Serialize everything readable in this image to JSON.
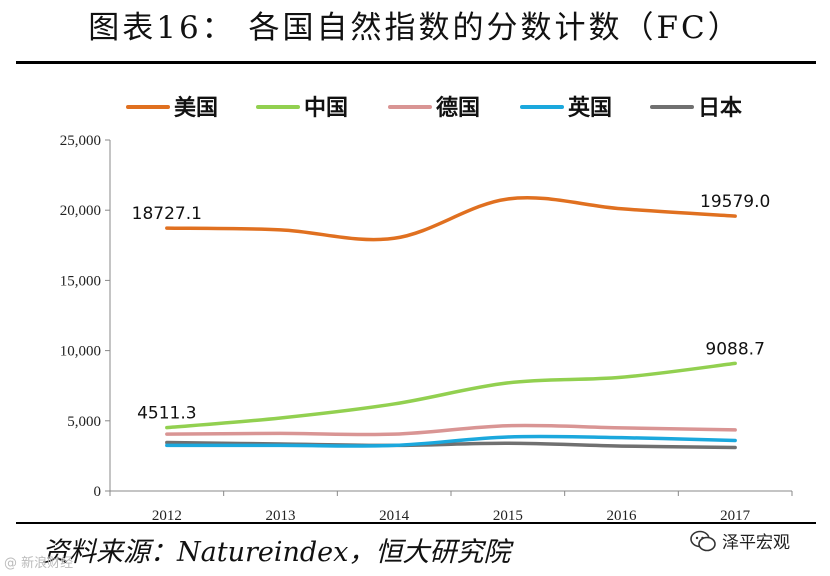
{
  "title": "图表16： 各国自然指数的分数计数（FC）",
  "source_text": "资料来源：Natureindex，恒大研究院",
  "logo_text": "泽平宏观",
  "watermark_text": "@ 新浪财经",
  "chart_data": {
    "type": "line",
    "categories": [
      "2012",
      "2013",
      "2014",
      "2015",
      "2016",
      "2017"
    ],
    "ylim": [
      0,
      25000
    ],
    "yticks": [
      0,
      5000,
      10000,
      15000,
      20000,
      25000
    ],
    "ytick_labels": [
      "0",
      "5,000",
      "10,000",
      "15,000",
      "20,000",
      "25,000"
    ],
    "legend_position": "top",
    "series": [
      {
        "name": "美国",
        "color": "#E07020",
        "values": [
          18727.1,
          18600,
          18000,
          20800,
          20100,
          19579.0
        ]
      },
      {
        "name": "中国",
        "color": "#92D050",
        "values": [
          4511.3,
          5200,
          6200,
          7700,
          8100,
          9088.7
        ]
      },
      {
        "name": "德国",
        "color": "#D99594",
        "values": [
          4050,
          4100,
          4050,
          4650,
          4500,
          4350
        ]
      },
      {
        "name": "英国",
        "color": "#1BA8DD",
        "values": [
          3250,
          3250,
          3250,
          3850,
          3800,
          3600
        ]
      },
      {
        "name": "日本",
        "color": "#707070",
        "values": [
          3450,
          3350,
          3250,
          3400,
          3200,
          3100
        ]
      }
    ],
    "data_labels": [
      {
        "series": 0,
        "index": 0,
        "text": "18727.1"
      },
      {
        "series": 0,
        "index": 5,
        "text": "19579.0"
      },
      {
        "series": 1,
        "index": 0,
        "text": "4511.3"
      },
      {
        "series": 1,
        "index": 5,
        "text": "9088.7"
      }
    ]
  }
}
